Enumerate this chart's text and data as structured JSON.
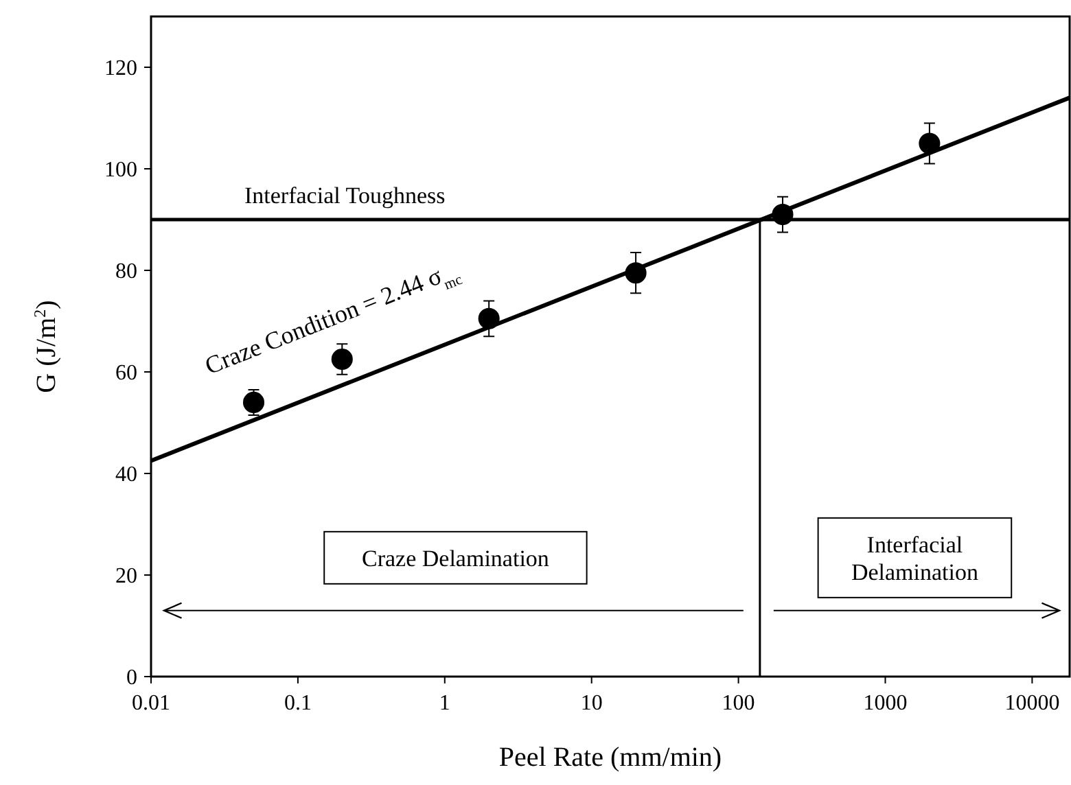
{
  "chart_data": {
    "type": "scatter",
    "xlabel": "Peel Rate (mm/min)",
    "ylabel": "G (J/m$^{2}$)",
    "log": "x",
    "xlim": [
      0.01,
      18000
    ],
    "ylim": [
      0,
      130
    ],
    "xticks": [
      0.01,
      0.1,
      1,
      10,
      100,
      1000,
      10000
    ],
    "yticks": [
      0,
      20,
      40,
      60,
      80,
      100,
      120
    ],
    "grid": false,
    "series": [
      {
        "marker": "circle",
        "color": "#000000",
        "x": [
          0.05,
          0.2,
          2,
          20,
          200,
          2000
        ],
        "values": [
          54,
          62.5,
          70.5,
          79.5,
          91,
          105
        ],
        "errors": [
          2.5,
          3,
          3.5,
          4,
          3.5,
          4
        ]
      },
      {
        "type": "line",
        "color": "#000000",
        "x": [
          0.01,
          18000
        ],
        "values": [
          42.5,
          114
        ],
        "line_style": "solid"
      }
    ],
    "ref_lines": [
      {
        "axis": "y",
        "value": 90,
        "label": "Interfacial Toughness",
        "color": "#000000"
      },
      {
        "axis": "x",
        "value": 140,
        "color": "#000000"
      }
    ],
    "annotations": [
      "Craze Condition = 2.44 σ$_{mc}$",
      "Craze Delamination",
      "Interfacial\nDelamination"
    ]
  }
}
